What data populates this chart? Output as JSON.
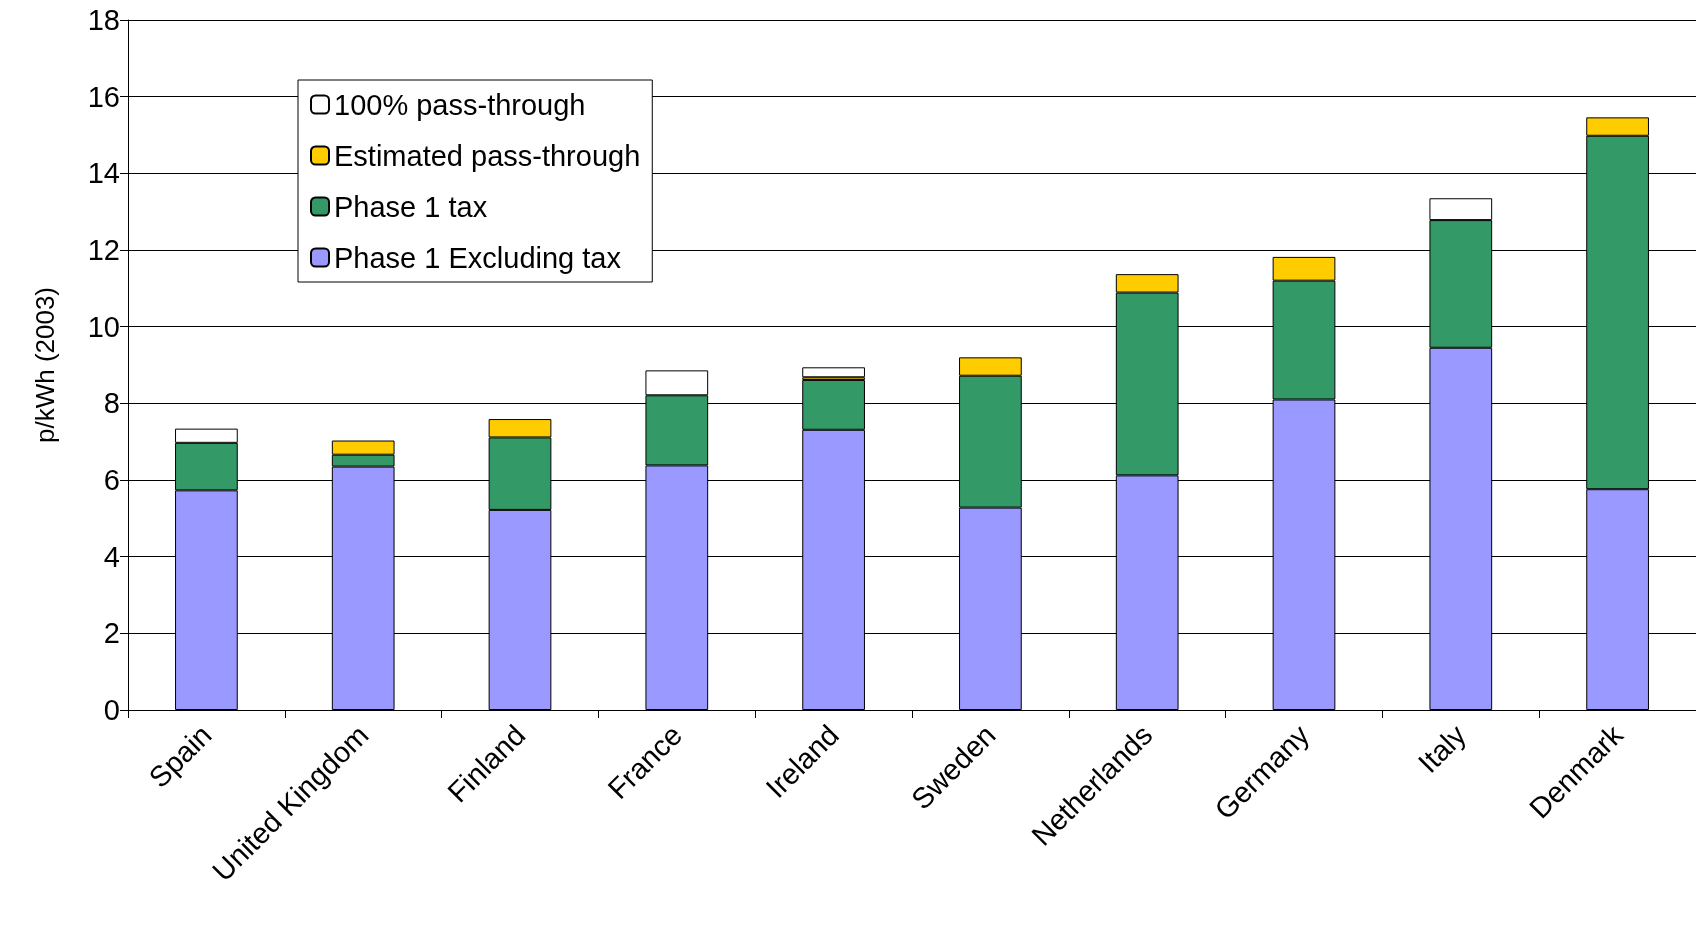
{
  "chart_data": {
    "type": "bar",
    "stacked": true,
    "ylabel": "p/kWh (2003)",
    "categories": [
      "Spain",
      "United Kingdom",
      "Finland",
      "France",
      "Ireland",
      "Sweden",
      "Netherlands",
      "Germany",
      "Italy",
      "Denmark"
    ],
    "series": [
      {
        "name": "Phase 1 Excluding tax",
        "color": "#9999ff",
        "values": [
          5.73,
          6.35,
          5.22,
          6.38,
          7.31,
          5.28,
          6.12,
          8.1,
          9.45,
          5.76
        ]
      },
      {
        "name": "Phase 1 tax",
        "color": "#339966",
        "values": [
          1.24,
          0.31,
          1.89,
          1.83,
          1.3,
          3.44,
          4.77,
          3.1,
          3.33,
          9.22
        ]
      },
      {
        "name": "Estimated pass-through",
        "color": "#ffcc00",
        "values": [
          null,
          0.37,
          0.48,
          null,
          0.07,
          0.48,
          0.48,
          0.62,
          null,
          0.48
        ]
      },
      {
        "name": "100% pass-through",
        "color": "#ffffff",
        "values": [
          0.37,
          null,
          null,
          0.65,
          0.26,
          null,
          null,
          null,
          0.57,
          null
        ]
      }
    ],
    "ylim": [
      0,
      18
    ],
    "yticks": [
      0,
      2,
      4,
      6,
      8,
      10,
      12,
      14,
      16,
      18
    ],
    "grid": "y",
    "legend": "top left"
  }
}
